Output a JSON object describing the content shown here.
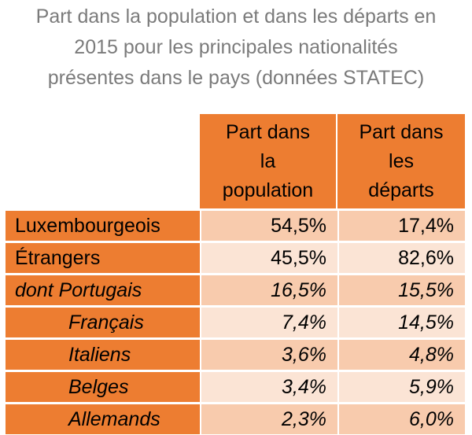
{
  "title_lines": [
    "Part dans la population et dans les départs en",
    "2015 pour les principales nationalités",
    "présentes dans le pays (données STATEC)"
  ],
  "table": {
    "headers": [
      [
        "Part dans",
        "la",
        "population"
      ],
      [
        "Part dans",
        "les",
        "départs"
      ]
    ],
    "rows": [
      {
        "label": "Luxembourgeois",
        "population": "54,5%",
        "departs": "17,4%"
      },
      {
        "label": "Étrangers",
        "population": "45,5%",
        "departs": "82,6%"
      },
      {
        "label": "dont Portugais",
        "population": "16,5%",
        "departs": "15,5%"
      },
      {
        "label": "Français",
        "population": "7,4%",
        "departs": "14,5%"
      },
      {
        "label": "Italiens",
        "population": "3,6%",
        "departs": "4,8%"
      },
      {
        "label": "Belges",
        "population": "3,4%",
        "departs": "5,9%"
      },
      {
        "label": "Allemands",
        "population": "2,3%",
        "departs": "6,0%"
      }
    ]
  },
  "colors": {
    "header_orange": "#ed7d31",
    "row_dark": "#f8cbad",
    "row_light": "#fbe4d5",
    "title_gray": "#7b7b7b"
  }
}
